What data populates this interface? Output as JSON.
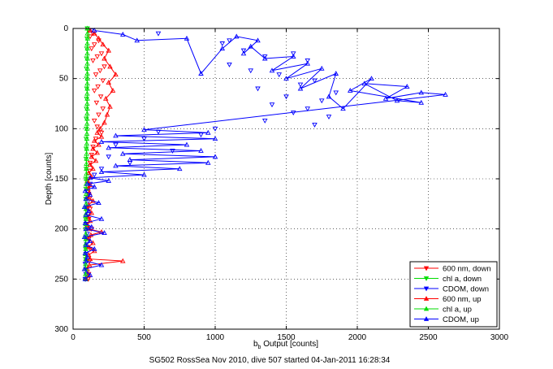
{
  "chart_data": {
    "type": "scatter",
    "caption": "SG502 RossSea Nov 2010, dive 507 started 04-Jan-2011 16:28:34",
    "xlabel_main": "b",
    "xlabel_sub": "b",
    "xlabel_rest": " Output [counts]",
    "ylabel": "Depth [counts]",
    "xlim": [
      0,
      3000
    ],
    "ylim": [
      0,
      300
    ],
    "y_reversed": true,
    "grid": true,
    "legend_position": "bottom-right",
    "xticks": [
      0,
      500,
      1000,
      1500,
      2000,
      2500,
      3000
    ],
    "yticks": [
      0,
      50,
      100,
      150,
      200,
      250,
      300
    ],
    "series": [
      {
        "name": "600 nm, down",
        "color": "#ff0000",
        "marker": "triangle-down",
        "line": false,
        "points": [
          [
            110,
            2
          ],
          [
            140,
            5
          ],
          [
            120,
            8
          ],
          [
            180,
            12
          ],
          [
            150,
            16
          ],
          [
            130,
            20
          ],
          [
            200,
            25
          ],
          [
            170,
            28
          ],
          [
            140,
            32
          ],
          [
            220,
            38
          ],
          [
            190,
            42
          ],
          [
            160,
            46
          ],
          [
            210,
            52
          ],
          [
            175,
            58
          ],
          [
            150,
            62
          ],
          [
            195,
            68
          ],
          [
            165,
            74
          ],
          [
            210,
            80
          ],
          [
            180,
            86
          ],
          [
            150,
            92
          ],
          [
            170,
            98
          ],
          [
            200,
            104
          ],
          [
            160,
            110
          ],
          [
            140,
            118
          ],
          [
            130,
            126
          ],
          [
            120,
            134
          ],
          [
            115,
            142
          ],
          [
            110,
            150
          ],
          [
            105,
            160
          ],
          [
            115,
            170
          ],
          [
            120,
            180
          ],
          [
            110,
            190
          ],
          [
            130,
            200
          ],
          [
            110,
            210
          ],
          [
            120,
            220
          ],
          [
            115,
            232
          ],
          [
            110,
            245
          ],
          [
            105,
            250
          ]
        ]
      },
      {
        "name": "chl a, down",
        "color": "#00dd00",
        "marker": "triangle-down",
        "line": false,
        "points": [
          [
            100,
            0
          ],
          [
            98,
            10
          ],
          [
            96,
            20
          ],
          [
            95,
            30
          ],
          [
            94,
            40
          ],
          [
            95,
            50
          ],
          [
            96,
            60
          ],
          [
            95,
            70
          ],
          [
            94,
            80
          ],
          [
            93,
            90
          ],
          [
            93,
            100
          ],
          [
            92,
            110
          ],
          [
            92,
            120
          ],
          [
            91,
            130
          ],
          [
            92,
            140
          ],
          [
            90,
            150
          ],
          [
            90,
            160
          ],
          [
            89,
            170
          ],
          [
            89,
            180
          ],
          [
            88,
            190
          ],
          [
            88,
            200
          ],
          [
            89,
            210
          ],
          [
            88,
            220
          ],
          [
            88,
            230
          ],
          [
            89,
            240
          ],
          [
            88,
            250
          ]
        ]
      },
      {
        "name": "CDOM, down",
        "color": "#0000ff",
        "marker": "triangle-down",
        "line": false,
        "points": [
          [
            130,
            2
          ],
          [
            600,
            5
          ],
          [
            1100,
            12
          ],
          [
            1050,
            15
          ],
          [
            1200,
            22
          ],
          [
            1550,
            25
          ],
          [
            1350,
            28
          ],
          [
            1650,
            32
          ],
          [
            1100,
            36
          ],
          [
            1250,
            42
          ],
          [
            1450,
            46
          ],
          [
            1700,
            52
          ],
          [
            1600,
            56
          ],
          [
            1300,
            60
          ],
          [
            1850,
            64
          ],
          [
            1500,
            68
          ],
          [
            1750,
            72
          ],
          [
            1400,
            76
          ],
          [
            1650,
            80
          ],
          [
            1550,
            84
          ],
          [
            1800,
            88
          ],
          [
            1350,
            92
          ],
          [
            1700,
            96
          ],
          [
            1000,
            100
          ],
          [
            600,
            103
          ],
          [
            900,
            106
          ],
          [
            500,
            110
          ],
          [
            300,
            116
          ],
          [
            700,
            122
          ],
          [
            250,
            128
          ],
          [
            400,
            134
          ],
          [
            200,
            140
          ],
          [
            150,
            146
          ],
          [
            120,
            155
          ],
          [
            110,
            165
          ],
          [
            100,
            175
          ],
          [
            105,
            185
          ],
          [
            90,
            195
          ],
          [
            100,
            205
          ],
          [
            95,
            215
          ],
          [
            90,
            225
          ],
          [
            85,
            235
          ],
          [
            90,
            245
          ],
          [
            85,
            250
          ]
        ]
      },
      {
        "name": "600 nm, up",
        "color": "#ff0000",
        "marker": "triangle-up",
        "line": true,
        "points": [
          [
            95,
            250
          ],
          [
            110,
            246
          ],
          [
            100,
            240
          ],
          [
            115,
            236
          ],
          [
            350,
            232
          ],
          [
            120,
            230
          ],
          [
            110,
            226
          ],
          [
            150,
            222
          ],
          [
            110,
            218
          ],
          [
            140,
            214
          ],
          [
            105,
            210
          ],
          [
            125,
            206
          ],
          [
            200,
            203
          ],
          [
            110,
            200
          ],
          [
            100,
            196
          ],
          [
            120,
            192
          ],
          [
            105,
            188
          ],
          [
            130,
            184
          ],
          [
            100,
            180
          ],
          [
            110,
            176
          ],
          [
            140,
            172
          ],
          [
            100,
            168
          ],
          [
            115,
            164
          ],
          [
            105,
            160
          ],
          [
            120,
            156
          ],
          [
            100,
            152
          ],
          [
            130,
            148
          ],
          [
            110,
            144
          ],
          [
            140,
            140
          ],
          [
            120,
            136
          ],
          [
            160,
            132
          ],
          [
            130,
            128
          ],
          [
            170,
            124
          ],
          [
            140,
            120
          ],
          [
            180,
            116
          ],
          [
            150,
            112
          ],
          [
            200,
            108
          ],
          [
            170,
            104
          ],
          [
            190,
            100
          ],
          [
            220,
            94
          ],
          [
            240,
            86
          ],
          [
            260,
            78
          ],
          [
            230,
            70
          ],
          [
            280,
            62
          ],
          [
            250,
            54
          ],
          [
            300,
            46
          ],
          [
            260,
            38
          ],
          [
            220,
            30
          ],
          [
            250,
            22
          ],
          [
            210,
            16
          ],
          [
            180,
            10
          ],
          [
            150,
            5
          ],
          [
            120,
            2
          ]
        ]
      },
      {
        "name": "chl a, up",
        "color": "#00dd00",
        "marker": "triangle-up",
        "line": true,
        "points": [
          [
            88,
            250
          ],
          [
            88,
            245
          ],
          [
            89,
            240
          ],
          [
            88,
            235
          ],
          [
            89,
            230
          ],
          [
            88,
            225
          ],
          [
            89,
            220
          ],
          [
            88,
            215
          ],
          [
            90,
            210
          ],
          [
            89,
            205
          ],
          [
            90,
            200
          ],
          [
            90,
            195
          ],
          [
            91,
            190
          ],
          [
            90,
            185
          ],
          [
            91,
            180
          ],
          [
            92,
            175
          ],
          [
            91,
            170
          ],
          [
            92,
            165
          ],
          [
            93,
            160
          ],
          [
            92,
            155
          ],
          [
            93,
            150
          ],
          [
            94,
            145
          ],
          [
            93,
            140
          ],
          [
            94,
            135
          ],
          [
            95,
            130
          ],
          [
            95,
            125
          ],
          [
            96,
            120
          ],
          [
            96,
            115
          ],
          [
            97,
            110
          ],
          [
            97,
            105
          ],
          [
            98,
            100
          ],
          [
            98,
            95
          ],
          [
            99,
            90
          ],
          [
            99,
            85
          ],
          [
            100,
            80
          ],
          [
            99,
            75
          ],
          [
            100,
            70
          ],
          [
            99,
            65
          ],
          [
            100,
            60
          ],
          [
            100,
            55
          ],
          [
            101,
            50
          ],
          [
            100,
            45
          ],
          [
            101,
            40
          ],
          [
            100,
            35
          ],
          [
            101,
            30
          ],
          [
            100,
            25
          ],
          [
            101,
            20
          ],
          [
            100,
            15
          ],
          [
            102,
            10
          ],
          [
            101,
            5
          ],
          [
            100,
            0
          ]
        ]
      },
      {
        "name": "CDOM, up",
        "color": "#0000ff",
        "marker": "triangle-up",
        "line": true,
        "points": [
          [
            85,
            250
          ],
          [
            120,
            246
          ],
          [
            80,
            240
          ],
          [
            200,
            236
          ],
          [
            90,
            232
          ],
          [
            100,
            228
          ],
          [
            85,
            224
          ],
          [
            150,
            220
          ],
          [
            90,
            216
          ],
          [
            120,
            212
          ],
          [
            80,
            208
          ],
          [
            220,
            204
          ],
          [
            90,
            200
          ],
          [
            130,
            198
          ],
          [
            85,
            194
          ],
          [
            200,
            190
          ],
          [
            90,
            186
          ],
          [
            110,
            182
          ],
          [
            80,
            178
          ],
          [
            180,
            174
          ],
          [
            90,
            170
          ],
          [
            120,
            166
          ],
          [
            85,
            162
          ],
          [
            150,
            158
          ],
          [
            100,
            155
          ],
          [
            250,
            152
          ],
          [
            120,
            149
          ],
          [
            500,
            146
          ],
          [
            200,
            143
          ],
          [
            750,
            140
          ],
          [
            300,
            137
          ],
          [
            950,
            134
          ],
          [
            400,
            131
          ],
          [
            1000,
            128
          ],
          [
            350,
            125
          ],
          [
            900,
            122
          ],
          [
            250,
            119
          ],
          [
            800,
            116
          ],
          [
            200,
            113
          ],
          [
            1000,
            110
          ],
          [
            300,
            107
          ],
          [
            950,
            104
          ],
          [
            500,
            101
          ],
          [
            2620,
            66
          ],
          [
            2450,
            64
          ],
          [
            2200,
            70
          ],
          [
            2350,
            58
          ],
          [
            2050,
            55
          ],
          [
            2280,
            72
          ],
          [
            2450,
            74
          ],
          [
            1950,
            62
          ],
          [
            2100,
            50
          ],
          [
            1900,
            80
          ],
          [
            1800,
            68
          ],
          [
            1850,
            45
          ],
          [
            1600,
            60
          ],
          [
            1750,
            40
          ],
          [
            1500,
            50
          ],
          [
            1650,
            35
          ],
          [
            1400,
            42
          ],
          [
            1550,
            28
          ],
          [
            1350,
            30
          ],
          [
            1250,
            18
          ],
          [
            1200,
            25
          ],
          [
            1300,
            12
          ],
          [
            1150,
            8
          ],
          [
            1050,
            20
          ],
          [
            900,
            45
          ],
          [
            800,
            10
          ],
          [
            450,
            12
          ],
          [
            350,
            6
          ],
          [
            150,
            2
          ]
        ]
      }
    ]
  }
}
